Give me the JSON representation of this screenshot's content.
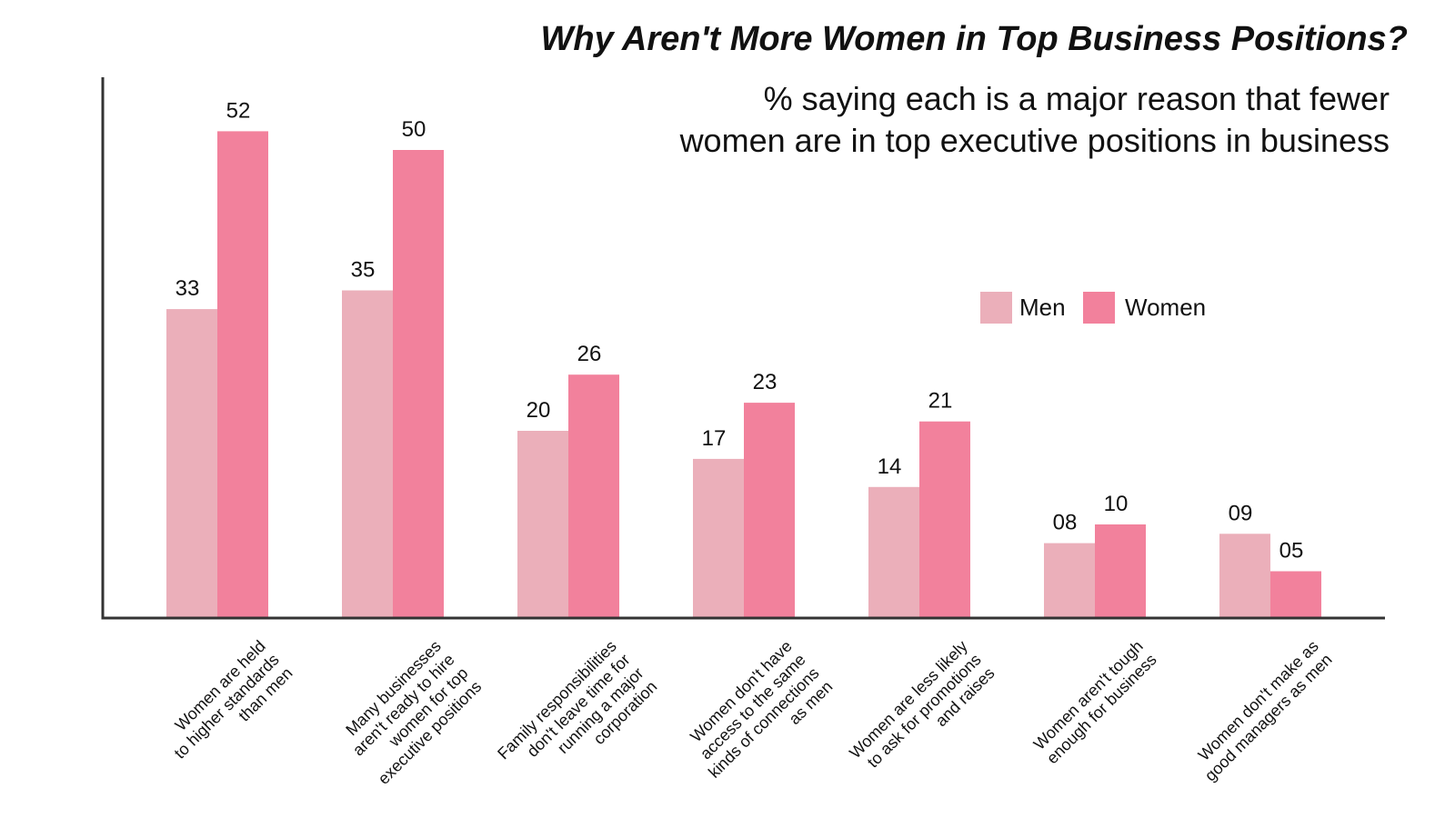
{
  "chart_data": {
    "type": "bar",
    "title": "Why Aren't More Women in Top Business Positions?",
    "subtitle_lines": [
      "% saying each is a major reason that fewer",
      "women are in top executive positions in business"
    ],
    "categories": [
      "Women are held to higher standards than men",
      "Many businesses aren't ready to hire women for top executive positions",
      "Family responsibilities don't leave time for running a major corporation",
      "Women don't have access to the same kinds of connections as men",
      "Women are less likely to ask for promotions and raises",
      "Women aren't tough enough for business",
      "Women don't make as good managers as men"
    ],
    "category_label_lines": [
      [
        "Women are held",
        "to higher standards",
        "than men"
      ],
      [
        "Many businesses",
        "aren't ready to hire",
        "women for top",
        "executive positions"
      ],
      [
        "Family responsibilities",
        "don't leave time for",
        "running a major",
        "corporation"
      ],
      [
        "Women don't have",
        "access to the same",
        "kinds of connections",
        "as men"
      ],
      [
        "Women are less likely",
        "to ask for promotions",
        "and raises"
      ],
      [
        "Women aren't tough",
        "enough for business"
      ],
      [
        "Women don't make as",
        "good managers as men"
      ]
    ],
    "series": [
      {
        "name": "Men",
        "values": [
          33,
          35,
          20,
          17,
          14,
          8,
          9
        ],
        "labels": [
          "33",
          "35",
          "20",
          "17",
          "14",
          "08",
          "09"
        ],
        "color": "#EBAFBA"
      },
      {
        "name": "Women",
        "values": [
          52,
          50,
          26,
          23,
          21,
          10,
          5
        ],
        "labels": [
          "52",
          "50",
          "26",
          "23",
          "21",
          "10",
          "05"
        ],
        "color": "#F2819C"
      }
    ],
    "ylim": [
      0,
      55
    ],
    "grid": false,
    "legend_position": "center-right",
    "xlabel": "",
    "ylabel": ""
  }
}
